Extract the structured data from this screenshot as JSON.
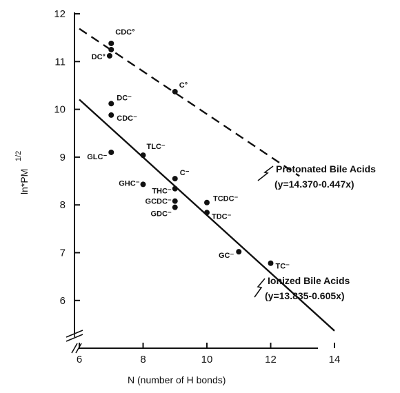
{
  "chart_data": {
    "type": "scatter",
    "xlabel": "N (number of H bonds)",
    "ylabel": "ln*PM",
    "ylabel_exponent": "1/2",
    "xlim": [
      6,
      15
    ],
    "ylim": [
      5.6,
      12
    ],
    "x_ticks": [
      6,
      8,
      10,
      12,
      14
    ],
    "y_ticks": [
      6,
      7,
      8,
      9,
      10,
      11,
      12
    ],
    "grid": false,
    "y_axis_break": true,
    "series": [
      {
        "name": "Protonated Bile Acids",
        "equation": "(y=14.370-0.447x)",
        "fit_line": {
          "slope": -0.447,
          "intercept": 14.37,
          "x_range": [
            6,
            12.9
          ],
          "style": "dashed"
        },
        "points": [
          {
            "label": "CDC°",
            "x": 7,
            "y": 11.38
          },
          {
            "label": "",
            "x": 7,
            "y": 11.25
          },
          {
            "label": "DC°",
            "x": 6.95,
            "y": 11.12
          },
          {
            "label": "C°",
            "x": 9,
            "y": 10.37
          }
        ]
      },
      {
        "name": "Ionized Bile Acids",
        "equation": "(y=13.835-0.605x)",
        "fit_line": {
          "slope": -0.605,
          "intercept": 13.835,
          "x_range": [
            6,
            14
          ],
          "style": "solid"
        },
        "points": [
          {
            "label": "DC⁻",
            "x": 7,
            "y": 10.12
          },
          {
            "label": "CDC⁻",
            "x": 7,
            "y": 9.88
          },
          {
            "label": "GLC⁻",
            "x": 7,
            "y": 9.1
          },
          {
            "label": "TLC⁻",
            "x": 8,
            "y": 9.04
          },
          {
            "label": "GHC⁻",
            "x": 8,
            "y": 8.43
          },
          {
            "label": "C⁻",
            "x": 9,
            "y": 8.55
          },
          {
            "label": "THC⁻",
            "x": 9,
            "y": 8.34
          },
          {
            "label": "GCDC⁻",
            "x": 9,
            "y": 8.08
          },
          {
            "label": "GDC⁻",
            "x": 9,
            "y": 7.95
          },
          {
            "label": "TCDC⁻",
            "x": 10,
            "y": 8.05
          },
          {
            "label": "TDC⁻",
            "x": 10,
            "y": 7.84
          },
          {
            "label": "GC⁻",
            "x": 11,
            "y": 7.02
          },
          {
            "label": "TC⁻",
            "x": 12,
            "y": 6.78
          }
        ]
      }
    ]
  },
  "colors": {
    "ink": "#111111",
    "background": "#ffffff"
  }
}
